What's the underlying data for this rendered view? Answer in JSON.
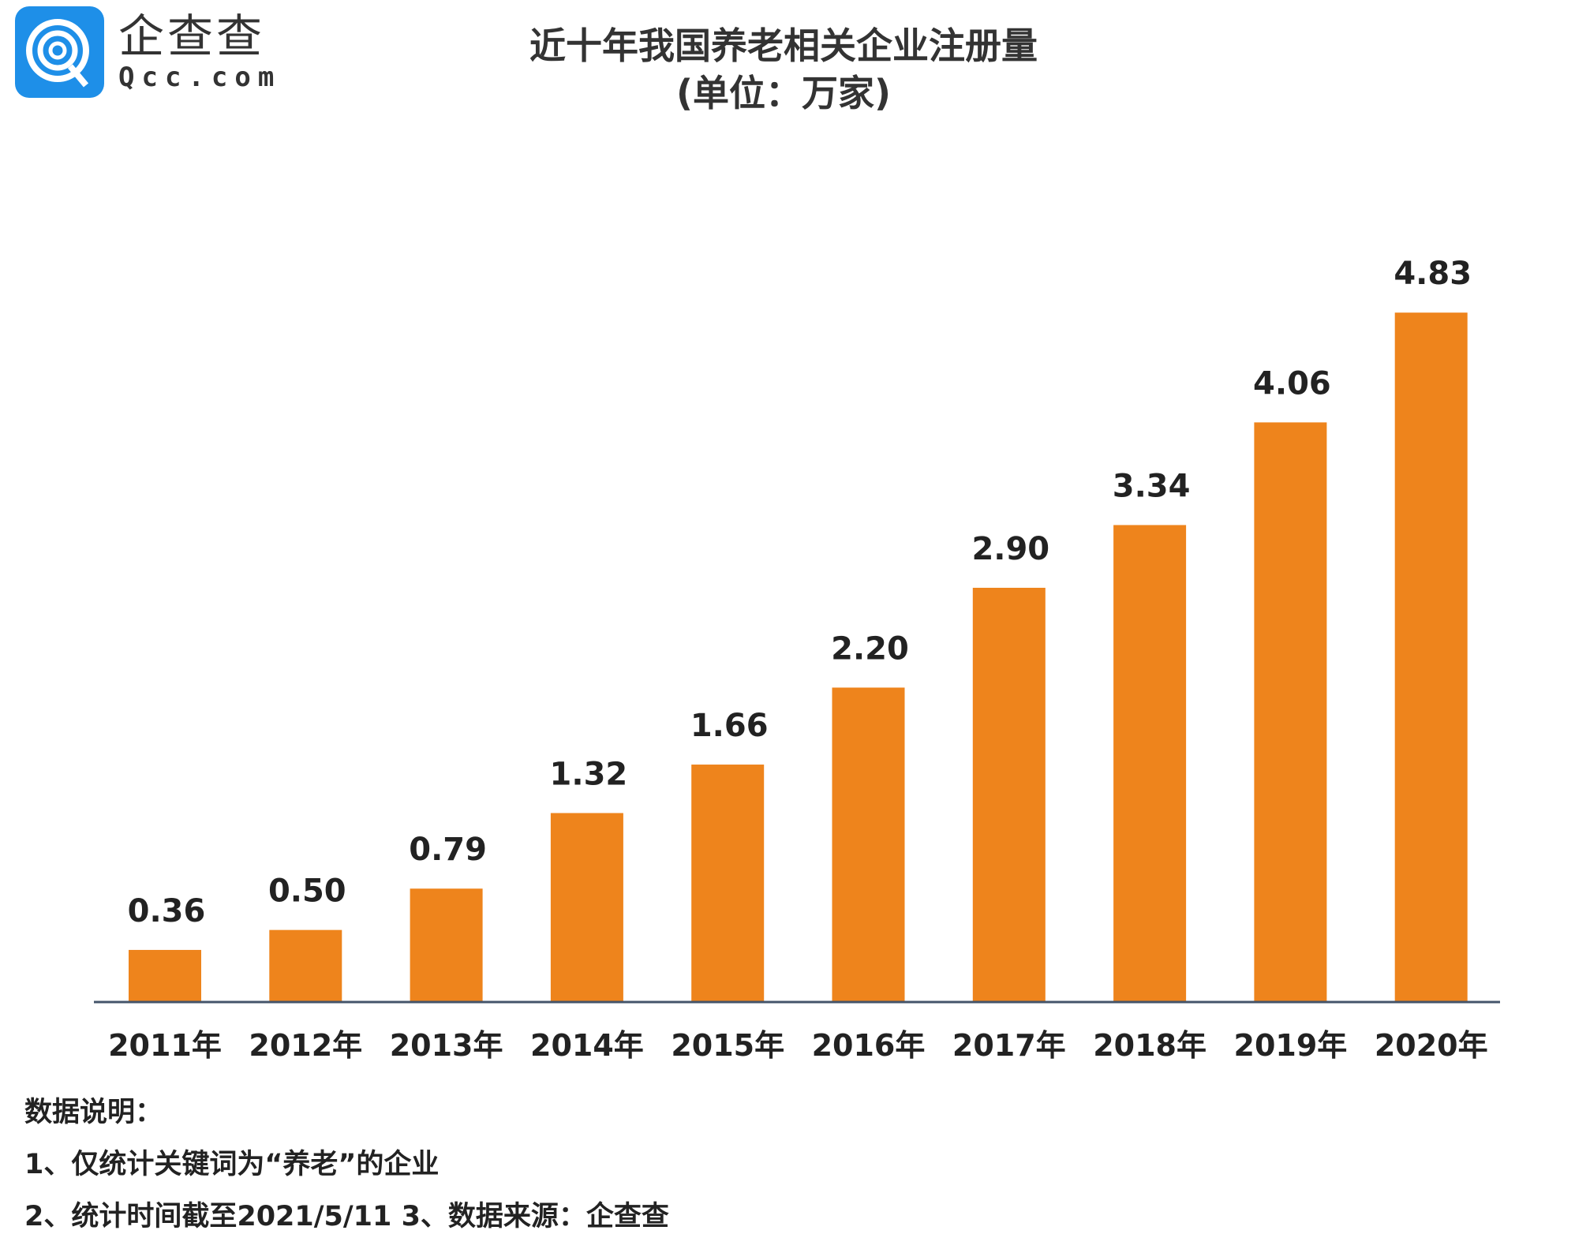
{
  "logo": {
    "cn": "企查查",
    "en": "Qcc.com"
  },
  "title": {
    "line1": "近十年我国养老相关企业注册量",
    "line2": "(单位：万家)"
  },
  "notes": {
    "heading": "数据说明：",
    "items": [
      "1、仅统计关键词为“养老”的企业",
      "2、统计时间截至2021/5/11   3、数据来源：企查查"
    ]
  },
  "colors": {
    "bar": "#ee841c",
    "axis": "#44546a",
    "logo": "#1e8fe8"
  },
  "chart_data": {
    "type": "bar",
    "title": "近十年我国养老相关企业注册量(单位：万家)",
    "categories": [
      "2011年",
      "2012年",
      "2013年",
      "2014年",
      "2015年",
      "2016年",
      "2017年",
      "2018年",
      "2019年",
      "2020年"
    ],
    "values": [
      0.36,
      0.5,
      0.79,
      1.32,
      1.66,
      2.2,
      2.9,
      3.34,
      4.06,
      4.83
    ],
    "value_labels": [
      "0.36",
      "0.50",
      "0.79",
      "1.32",
      "1.66",
      "2.20",
      "2.90",
      "3.34",
      "4.06",
      "4.83"
    ],
    "xlabel": "",
    "ylabel": "万家",
    "ylim": [
      0,
      5.2
    ],
    "grid": false,
    "legend": "none"
  }
}
